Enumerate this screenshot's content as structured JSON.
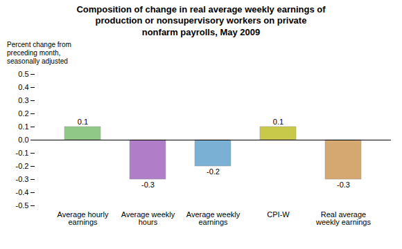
{
  "chart_data": {
    "type": "bar",
    "title": "Composition of change in real average weekly earnings of\nproduction or nonsupervisory workers on private\nnonfarm payrolls, May 2009",
    "ylabel": "Percent change from\npreceding month,\nseasonally adjusted",
    "categories": [
      "Average hourly\nearnings",
      "Average weekly\nhours",
      "Average weekly\nearnings",
      "CPI-W",
      "Real average\nweekly earnings"
    ],
    "values": [
      0.1,
      -0.3,
      -0.2,
      0.1,
      -0.3
    ],
    "colors": [
      "#90c987",
      "#b07ec8",
      "#7ab0d4",
      "#c8c84a",
      "#d4a870"
    ],
    "ylim": [
      -0.5,
      0.5
    ],
    "yticks": [
      -0.5,
      -0.4,
      -0.3,
      -0.2,
      -0.1,
      {
        "value": 0,
        "label": "0.0"
      },
      0.1,
      0.2,
      0.3,
      0.4,
      0.5
    ],
    "data_labels": true,
    "grid": false
  }
}
